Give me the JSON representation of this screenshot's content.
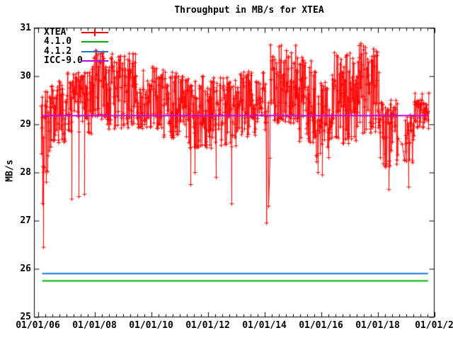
{
  "page": {
    "background": "#ffffff",
    "text_color": "#000000"
  },
  "chart_data": {
    "type": "line",
    "title": "Throughput in MB/s for XTEA",
    "ylabel": "MB/s",
    "ylim": [
      25,
      31
    ],
    "yticks": [
      25,
      26,
      27,
      28,
      29,
      30,
      31
    ],
    "xlim_years": [
      2005.875,
      2020.0
    ],
    "xticks": [
      {
        "year": 2006,
        "label": "01/01/06"
      },
      {
        "year": 2008,
        "label": "01/01/08"
      },
      {
        "year": 2010,
        "label": "01/01/10"
      },
      {
        "year": 2012,
        "label": "01/01/12"
      },
      {
        "year": 2014,
        "label": "01/01/14"
      },
      {
        "year": 2016,
        "label": "01/01/16"
      },
      {
        "year": 2018,
        "label": "01/01/18"
      },
      {
        "year": 2020,
        "label": "01/01/2"
      }
    ],
    "x_minor_interval_years": 0.25,
    "grid": false,
    "legend_position": "top-left-inside",
    "axis_color": "#000000",
    "series": [
      {
        "name": "XTEA",
        "color": "#ff0000",
        "style": "linespoints",
        "marker": "+",
        "seed": 7,
        "segments": [
          {
            "x0": 2006.12,
            "x1": 2006.45,
            "lo": 28.0,
            "hi": 29.75
          },
          {
            "x0": 2006.45,
            "x1": 2007.05,
            "lo": 28.6,
            "hi": 29.9
          },
          {
            "x0": 2007.05,
            "x1": 2007.92,
            "lo": 28.8,
            "hi": 30.1
          },
          {
            "x0": 2007.92,
            "x1": 2008.45,
            "lo": 29.1,
            "hi": 30.55
          },
          {
            "x0": 2008.45,
            "x1": 2009.45,
            "lo": 28.9,
            "hi": 30.5
          },
          {
            "x0": 2009.45,
            "x1": 2010.45,
            "lo": 28.9,
            "hi": 30.2
          },
          {
            "x0": 2010.45,
            "x1": 2011.3,
            "lo": 28.7,
            "hi": 30.1
          },
          {
            "x0": 2011.3,
            "x1": 2012.2,
            "lo": 28.5,
            "hi": 30.0
          },
          {
            "x0": 2012.2,
            "x1": 2013.05,
            "lo": 28.5,
            "hi": 30.0
          },
          {
            "x0": 2013.05,
            "x1": 2014.05,
            "lo": 28.7,
            "hi": 30.1
          },
          {
            "x0": 2014.05,
            "x1": 2014.22,
            "lo": 27.3,
            "hi": 29.6,
            "step": 2,
            "samples": 1
          },
          {
            "x0": 2014.22,
            "x1": 2015.17,
            "lo": 29.0,
            "hi": 30.65
          },
          {
            "x0": 2015.17,
            "x1": 2015.8,
            "lo": 28.6,
            "hi": 30.4
          },
          {
            "x0": 2015.8,
            "x1": 2016.3,
            "lo": 28.2,
            "hi": 29.9
          },
          {
            "x0": 2016.3,
            "x1": 2017.3,
            "lo": 28.6,
            "hi": 30.5
          },
          {
            "x0": 2017.3,
            "x1": 2018.05,
            "lo": 28.8,
            "hi": 30.7
          },
          {
            "x0": 2018.05,
            "x1": 2018.72,
            "lo": 28.1,
            "hi": 29.5
          },
          {
            "x0": 2018.72,
            "x1": 2018.95,
            "lo": 28.3,
            "hi": 29.2,
            "step": 6,
            "samples": 1
          },
          {
            "x0": 2018.95,
            "x1": 2019.3,
            "lo": 28.2,
            "hi": 29.2
          },
          {
            "x0": 2019.3,
            "x1": 2019.8,
            "lo": 28.9,
            "hi": 29.65
          }
        ],
        "spikes": [
          [
            2006.17,
            27.35
          ],
          [
            2006.2,
            26.45
          ],
          [
            2006.3,
            27.8
          ],
          [
            2007.2,
            27.45
          ],
          [
            2007.45,
            27.5
          ],
          [
            2007.65,
            27.55
          ],
          [
            2011.4,
            27.75
          ],
          [
            2011.55,
            28.0
          ],
          [
            2012.3,
            27.9
          ],
          [
            2012.85,
            27.35
          ],
          [
            2014.08,
            26.95
          ],
          [
            2014.15,
            27.3
          ],
          [
            2015.9,
            28.0
          ],
          [
            2016.05,
            27.95
          ],
          [
            2018.4,
            27.65
          ],
          [
            2019.1,
            27.7
          ]
        ]
      },
      {
        "name": "4.1.0",
        "color": "#00b000",
        "style": "line",
        "value": 25.75,
        "x_start": 2006.15,
        "x_end": 2019.78
      },
      {
        "name": "4.1.2",
        "color": "#1578d2",
        "style": "line",
        "value": 25.9,
        "x_start": 2006.15,
        "x_end": 2019.78
      },
      {
        "name": "ICC-9.0",
        "color": "#bb00ee",
        "style": "line",
        "value": 29.18,
        "x_start": 2006.15,
        "x_end": 2019.78
      }
    ]
  }
}
